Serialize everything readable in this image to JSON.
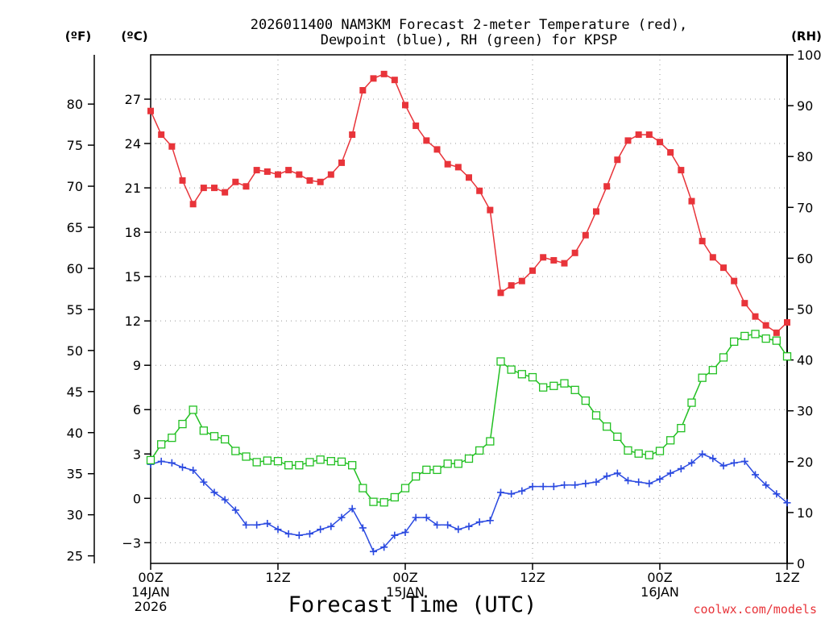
{
  "chart_data": {
    "type": "line",
    "title_line1": "2026011400 NAM3KM Forecast 2-meter Temperature (red),",
    "title_line2": "Dewpoint (blue), RH (green) for KPSP",
    "xlabel": "Forecast Time (UTC)",
    "credit": "coolwx.com/models",
    "unit_f_label": "(ºF)",
    "unit_c_label": "(ºC)",
    "unit_rh_label": "(RH)",
    "x_range_hours": [
      0,
      60
    ],
    "c_range": [
      -4.4,
      30
    ],
    "rh_range": [
      0,
      100
    ],
    "grid": "dotted",
    "colors": {
      "temperature": "#e8343a",
      "dewpoint": "#2a49e0",
      "rh": "#22c022"
    },
    "x_ticks": [
      {
        "hour": 0,
        "label": "00Z",
        "label2": "14JAN",
        "label3": "2026"
      },
      {
        "hour": 12,
        "label": "12Z",
        "label2": "",
        "label3": ""
      },
      {
        "hour": 24,
        "label": "00Z",
        "label2": "15JAN",
        "label3": ""
      },
      {
        "hour": 36,
        "label": "12Z",
        "label2": "",
        "label3": ""
      },
      {
        "hour": 48,
        "label": "00Z",
        "label2": "16JAN",
        "label3": ""
      },
      {
        "hour": 60,
        "label": "12Z",
        "label2": "",
        "label3": ""
      }
    ],
    "celsius_ticks": [
      {
        "value": -3,
        "label": "-3"
      },
      {
        "value": 0,
        "label": "0"
      },
      {
        "value": 3,
        "label": "3"
      },
      {
        "value": 6,
        "label": "6"
      },
      {
        "value": 9,
        "label": "9"
      },
      {
        "value": 12,
        "label": "12"
      },
      {
        "value": 15,
        "label": "15"
      },
      {
        "value": 18,
        "label": "18"
      },
      {
        "value": 21,
        "label": "21"
      },
      {
        "value": 24,
        "label": "24"
      },
      {
        "value": 27,
        "label": "27"
      }
    ],
    "fahrenheit_ticks": [
      {
        "value": 25,
        "label": "25"
      },
      {
        "value": 30,
        "label": "30"
      },
      {
        "value": 35,
        "label": "35"
      },
      {
        "value": 40,
        "label": "40"
      },
      {
        "value": 45,
        "label": "45"
      },
      {
        "value": 50,
        "label": "50"
      },
      {
        "value": 55,
        "label": "55"
      },
      {
        "value": 60,
        "label": "60"
      },
      {
        "value": 65,
        "label": "65"
      },
      {
        "value": 70,
        "label": "70"
      },
      {
        "value": 75,
        "label": "75"
      },
      {
        "value": 80,
        "label": "80"
      }
    ],
    "rh_ticks": [
      {
        "value": 0,
        "label": "0"
      },
      {
        "value": 10,
        "label": "10"
      },
      {
        "value": 20,
        "label": "20"
      },
      {
        "value": 30,
        "label": "30"
      },
      {
        "value": 40,
        "label": "40"
      },
      {
        "value": 50,
        "label": "50"
      },
      {
        "value": 60,
        "label": "60"
      },
      {
        "value": 70,
        "label": "70"
      },
      {
        "value": 80,
        "label": "80"
      },
      {
        "value": 90,
        "label": "90"
      },
      {
        "value": 100,
        "label": "100"
      }
    ],
    "series": [
      {
        "name": "Temperature",
        "axis": "celsius",
        "marker": "filled-square",
        "x": [
          0,
          1,
          2,
          3,
          4,
          5,
          6,
          7,
          8,
          9,
          10,
          11,
          12,
          13,
          14,
          15,
          16,
          17,
          18,
          19,
          20,
          21,
          22,
          23,
          24,
          25,
          26,
          27,
          28,
          29,
          30,
          31,
          32,
          33,
          34,
          35,
          36,
          37,
          38,
          39,
          40,
          41,
          42,
          43,
          44,
          45,
          46,
          47,
          48,
          49,
          50,
          51,
          52,
          53,
          54,
          55,
          56,
          57,
          58,
          59,
          60
        ],
        "values": [
          26.2,
          24.6,
          23.8,
          21.5,
          19.9,
          21.0,
          21.0,
          20.7,
          21.4,
          21.1,
          22.2,
          22.1,
          21.9,
          22.2,
          21.9,
          21.5,
          21.4,
          21.9,
          22.7,
          24.6,
          27.6,
          28.4,
          28.7,
          28.3,
          26.6,
          25.2,
          24.2,
          23.6,
          22.6,
          22.4,
          21.7,
          20.8,
          19.5,
          13.9,
          14.4,
          14.7,
          15.4,
          16.3,
          16.1,
          15.9,
          16.6,
          17.8,
          19.4,
          21.1,
          22.9,
          24.2,
          24.6,
          24.6,
          24.1,
          23.4,
          22.2,
          20.1,
          17.4,
          16.3,
          15.6,
          14.7,
          13.2,
          12.3,
          11.7,
          11.2,
          11.9
        ]
      },
      {
        "name": "Dewpoint",
        "axis": "celsius",
        "marker": "plus",
        "x": [
          0,
          1,
          2,
          3,
          4,
          5,
          6,
          7,
          8,
          9,
          10,
          11,
          12,
          13,
          14,
          15,
          16,
          17,
          18,
          19,
          20,
          21,
          22,
          23,
          24,
          25,
          26,
          27,
          28,
          29,
          30,
          31,
          32,
          33,
          34,
          35,
          36,
          37,
          38,
          39,
          40,
          41,
          42,
          43,
          44,
          45,
          46,
          47,
          48,
          49,
          50,
          51,
          52,
          53,
          54,
          55,
          56,
          57,
          58,
          59,
          60
        ],
        "values": [
          2.3,
          2.5,
          2.4,
          2.1,
          1.9,
          1.1,
          0.4,
          -0.1,
          -0.8,
          -1.8,
          -1.8,
          -1.7,
          -2.1,
          -2.4,
          -2.5,
          -2.4,
          -2.1,
          -1.9,
          -1.3,
          -0.7,
          -2.0,
          -3.6,
          -3.3,
          -2.5,
          -2.3,
          -1.3,
          -1.3,
          -1.8,
          -1.8,
          -2.1,
          -1.9,
          -1.6,
          -1.5,
          0.4,
          0.3,
          0.5,
          0.8,
          0.8,
          0.8,
          0.9,
          0.9,
          1.0,
          1.1,
          1.5,
          1.7,
          1.2,
          1.1,
          1.0,
          1.3,
          1.7,
          2.0,
          2.4,
          3.0,
          2.7,
          2.2,
          2.4,
          2.5,
          1.6,
          0.9,
          0.3,
          -0.3
        ]
      },
      {
        "name": "RH",
        "axis": "rh",
        "marker": "open-square",
        "x": [
          0,
          1,
          2,
          3,
          4,
          5,
          6,
          7,
          8,
          9,
          10,
          11,
          12,
          13,
          14,
          15,
          16,
          17,
          18,
          19,
          20,
          21,
          22,
          23,
          24,
          25,
          26,
          27,
          28,
          29,
          30,
          31,
          32,
          33,
          34,
          35,
          36,
          37,
          38,
          39,
          40,
          41,
          42,
          43,
          44,
          45,
          46,
          47,
          48,
          49,
          50,
          51,
          52,
          53,
          54,
          55,
          56,
          57,
          58,
          59,
          60
        ],
        "values": [
          20.3,
          23.4,
          24.7,
          27.4,
          30.2,
          26.1,
          25.0,
          24.4,
          22.1,
          21.0,
          19.9,
          20.2,
          20.1,
          19.3,
          19.3,
          19.9,
          20.4,
          20.1,
          20.0,
          19.3,
          14.8,
          12.1,
          12.0,
          13.0,
          14.8,
          17.1,
          18.4,
          18.4,
          19.6,
          19.6,
          20.6,
          22.2,
          24.0,
          39.7,
          38.1,
          37.2,
          36.6,
          34.6,
          34.9,
          35.4,
          34.1,
          32.0,
          29.1,
          26.9,
          24.9,
          22.2,
          21.6,
          21.3,
          22.1,
          24.2,
          26.6,
          31.6,
          36.5,
          38.0,
          40.5,
          43.6,
          44.7,
          45.1,
          44.2,
          43.8,
          40.7
        ]
      }
    ]
  }
}
